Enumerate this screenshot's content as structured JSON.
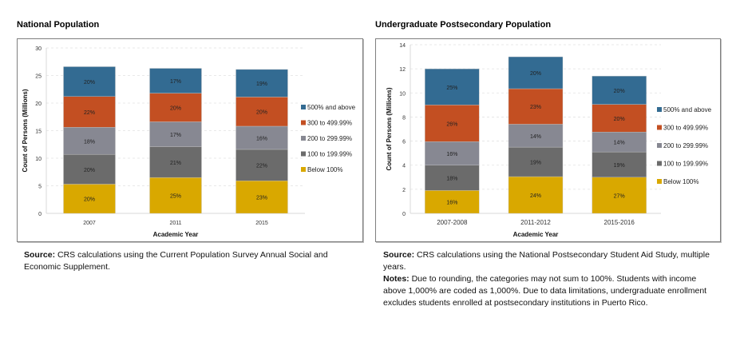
{
  "chart_data": [
    {
      "type": "bar",
      "stacked": true,
      "title": "National Population",
      "xlabel": "Academic Year",
      "ylabel": "Count of Persons (Millions)",
      "ylim": [
        0,
        30
      ],
      "yticks": [
        0,
        5,
        10,
        15,
        20,
        25,
        30
      ],
      "grid": true,
      "legend_position": "right",
      "categories": [
        "2007",
        "2011",
        "2015"
      ],
      "series": [
        {
          "name": "Below 100%",
          "color": "#D9A800",
          "values": [
            5.3,
            6.5,
            5.9
          ],
          "labels": [
            "20%",
            "25%",
            "23%"
          ]
        },
        {
          "name": "100 to 199.99%",
          "color": "#6B6B6B",
          "values": [
            5.4,
            5.6,
            5.7
          ],
          "labels": [
            "20%",
            "21%",
            "22%"
          ]
        },
        {
          "name": "200 to 299.99%",
          "color": "#878892",
          "values": [
            4.9,
            4.5,
            4.2
          ],
          "labels": [
            "18%",
            "17%",
            "16%"
          ]
        },
        {
          "name": "300 to 499.99%",
          "color": "#C34F22",
          "values": [
            5.6,
            5.2,
            5.3
          ],
          "labels": [
            "22%",
            "20%",
            "20%"
          ]
        },
        {
          "name": "500% and above",
          "color": "#336B92",
          "values": [
            5.4,
            4.5,
            5.0
          ],
          "labels": [
            "20%",
            "17%",
            "19%"
          ]
        }
      ],
      "note": {
        "label": "Source:",
        "text": " CRS calculations using the Current Population Survey Annual Social and Economic Supplement."
      }
    },
    {
      "type": "bar",
      "stacked": true,
      "title": "Undergraduate Postsecondary Population",
      "xlabel": "Academic Year",
      "ylabel": "Count of Persons (Millions)",
      "ylim": [
        0,
        14
      ],
      "yticks": [
        0,
        2,
        4,
        6,
        8,
        10,
        12,
        14
      ],
      "grid": true,
      "legend_position": "right",
      "categories": [
        "2007-2008",
        "2011-2012",
        "2015-2016"
      ],
      "series": [
        {
          "name": "Below 100%",
          "color": "#D9A800",
          "values": [
            1.9,
            3.05,
            3.0
          ],
          "labels": [
            "16%",
            "24%",
            "27%"
          ]
        },
        {
          "name": "100 to 199.99%",
          "color": "#6B6B6B",
          "values": [
            2.1,
            2.45,
            2.1
          ],
          "labels": [
            "18%",
            "19%",
            "19%"
          ]
        },
        {
          "name": "200 to 299.99%",
          "color": "#878892",
          "values": [
            1.95,
            1.9,
            1.65
          ],
          "labels": [
            "16%",
            "14%",
            "14%"
          ]
        },
        {
          "name": "300 to 499.99%",
          "color": "#C34F22",
          "values": [
            3.05,
            2.95,
            2.3
          ],
          "labels": [
            "26%",
            "23%",
            "20%"
          ]
        },
        {
          "name": "500% and above",
          "color": "#336B92",
          "values": [
            3.0,
            2.65,
            2.35
          ],
          "labels": [
            "25%",
            "20%",
            "20%"
          ]
        }
      ],
      "note": {
        "label": "Source:",
        "text": " CRS calculations using the National Postsecondary Student Aid Study, multiple years.",
        "label2": "Notes:",
        "text2": " Due to rounding, the categories may not sum to 100%. Students with income above 1,000% are coded as 1,000%. Due to data limitations, undergraduate enrollment excludes students enrolled at postsecondary institutions in Puerto Rico."
      }
    }
  ]
}
